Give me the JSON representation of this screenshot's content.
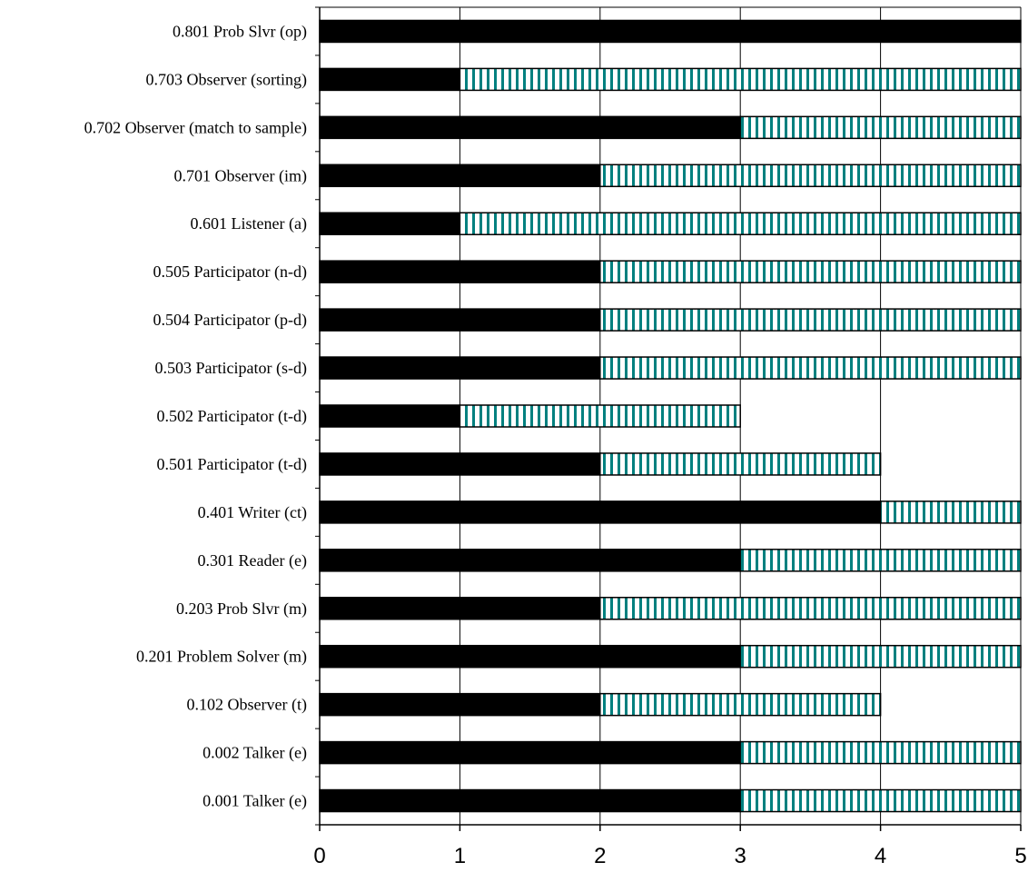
{
  "chart_data": {
    "type": "bar",
    "orientation": "horizontal",
    "stacked": true,
    "categories": [
      "0.801 Prob Slvr (op)",
      "0.703 Observer (sorting)",
      "0.702 Observer (match to sample)",
      "0.701 Observer (im)",
      "0.601 Listener (a)",
      "0.505 Participator  (n-d)",
      "0.504 Participator  (p-d)",
      "0.503 Participator  (s-d)",
      "0.502 Participator  (t-d)",
      "0.501 Participator  (t-d)",
      "0.401  Writer (ct)",
      "0.301 Reader (e)",
      "0.203 Prob Slvr (m)",
      "0.201 Problem Solver (m)",
      "0.102 Observer (t)",
      "0.002 Talker (e)",
      "0.001 Talker (e)"
    ],
    "series": [
      {
        "color": "#000000",
        "pattern": "solid",
        "values": [
          5,
          1,
          3,
          2,
          1,
          2,
          2,
          2,
          1,
          2,
          4,
          3,
          2,
          3,
          2,
          3,
          3
        ]
      },
      {
        "color": "#00807f",
        "pattern": "vertical-stripes",
        "values": [
          0,
          4,
          2,
          3,
          4,
          3,
          3,
          3,
          2,
          2,
          1,
          2,
          3,
          2,
          2,
          2,
          2
        ]
      }
    ],
    "xlim": [
      0,
      5
    ],
    "xticks": [
      "0",
      "1",
      "2",
      "3",
      "4",
      "5"
    ],
    "title": "",
    "xlabel": "",
    "ylabel": "",
    "grid": "vertical",
    "legend": "none"
  }
}
